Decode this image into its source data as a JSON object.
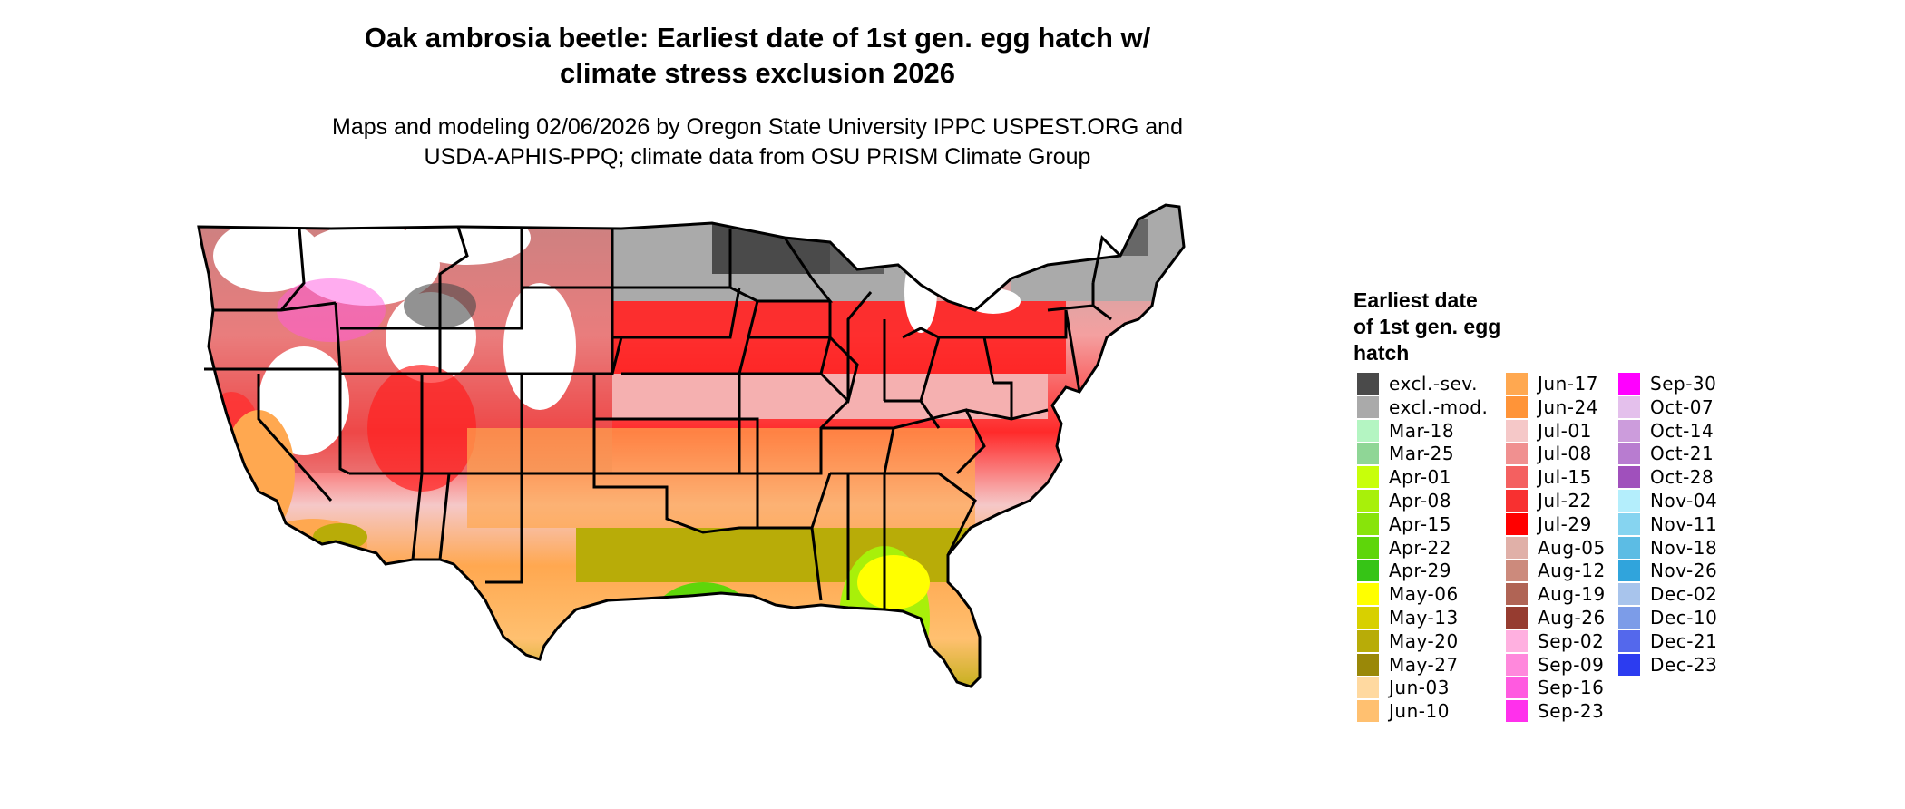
{
  "header": {
    "title_line1": "Oak ambrosia beetle: Earliest date of 1st gen. egg hatch w/",
    "title_line2": "climate stress exclusion 2026",
    "subtitle_line1": "Maps and modeling 02/06/2026 by Oregon State University IPPC USPEST.ORG and",
    "subtitle_line2": "USDA-APHIS-PPQ; climate data from OSU PRISM Climate Group"
  },
  "legend": {
    "title_line1": "Earliest date",
    "title_line2": "of 1st gen. egg",
    "title_line3": "hatch",
    "items": [
      {
        "label": "excl.-sev.",
        "color": "#4a4a4a"
      },
      {
        "label": "excl.-mod.",
        "color": "#aaaaaa"
      },
      {
        "label": "Mar-18",
        "color": "#b4f5c2"
      },
      {
        "label": "Mar-25",
        "color": "#8fd696"
      },
      {
        "label": "Apr-01",
        "color": "#c8ff0a"
      },
      {
        "label": "Apr-08",
        "color": "#a8f00a"
      },
      {
        "label": "Apr-15",
        "color": "#88e40a"
      },
      {
        "label": "Apr-22",
        "color": "#5ed60a"
      },
      {
        "label": "Apr-29",
        "color": "#36c416"
      },
      {
        "label": "May-06",
        "color": "#ffff00"
      },
      {
        "label": "May-13",
        "color": "#d8d000"
      },
      {
        "label": "May-20",
        "color": "#b8ac08"
      },
      {
        "label": "May-27",
        "color": "#9a8808"
      },
      {
        "label": "Jun-03",
        "color": "#ffd9a0"
      },
      {
        "label": "Jun-10",
        "color": "#ffc070"
      },
      {
        "label": "Jun-17",
        "color": "#ffa850"
      },
      {
        "label": "Jun-24",
        "color": "#ff9438"
      },
      {
        "label": "Jul-01",
        "color": "#f5c8c8"
      },
      {
        "label": "Jul-08",
        "color": "#f09090"
      },
      {
        "label": "Jul-15",
        "color": "#f46060"
      },
      {
        "label": "Jul-22",
        "color": "#f83030"
      },
      {
        "label": "Jul-29",
        "color": "#ff0000"
      },
      {
        "label": "Aug-05",
        "color": "#e0b0a8"
      },
      {
        "label": "Aug-12",
        "color": "#cc8a7c"
      },
      {
        "label": "Aug-19",
        "color": "#b06455"
      },
      {
        "label": "Aug-26",
        "color": "#963c30"
      },
      {
        "label": "Sep-02",
        "color": "#ffb0e0"
      },
      {
        "label": "Sep-09",
        "color": "#ff88dc"
      },
      {
        "label": "Sep-16",
        "color": "#ff5ae0"
      },
      {
        "label": "Sep-23",
        "color": "#ff30ec"
      },
      {
        "label": "Sep-30",
        "color": "#ff00ff"
      },
      {
        "label": "Oct-07",
        "color": "#e4c0ec"
      },
      {
        "label": "Oct-14",
        "color": "#cc9cdc"
      },
      {
        "label": "Oct-21",
        "color": "#b87cd0"
      },
      {
        "label": "Oct-28",
        "color": "#a050bc"
      },
      {
        "label": "Nov-04",
        "color": "#b4eefc"
      },
      {
        "label": "Nov-11",
        "color": "#86d4f0"
      },
      {
        "label": "Nov-18",
        "color": "#5cbce4"
      },
      {
        "label": "Nov-26",
        "color": "#30a4dc"
      },
      {
        "label": "Dec-02",
        "color": "#a8c4ec"
      },
      {
        "label": "Dec-10",
        "color": "#7c9ce8"
      },
      {
        "label": "Dec-21",
        "color": "#5468ec"
      },
      {
        "label": "Dec-23",
        "color": "#2c3cf0"
      }
    ]
  }
}
